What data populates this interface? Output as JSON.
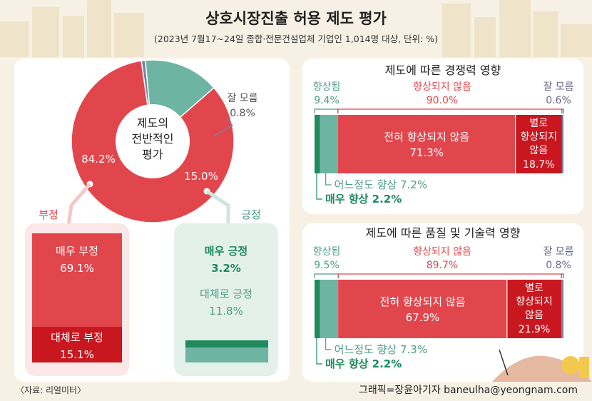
{
  "header": {
    "title": "상호시장진출 허용 제도 평가",
    "subtitle": "(2023년 7월17~24일 종합·전문건설업체 기업인 1,014명 대상, 단위: %)"
  },
  "footer": {
    "source": "〈자료: 리얼미터〉",
    "credit": "그래픽=장윤아기자 baneulha@yeongnam.com"
  },
  "colors": {
    "negative": "#e2464d",
    "negative_dark": "#c8171f",
    "positive": "#6db5a2",
    "positive_dark": "#1e8a5e",
    "unknown": "#7e7fa6",
    "panel_bg": "#ffffff",
    "neg_box_bg": "#fbe7e7",
    "pos_box_bg": "#e4f0ea"
  },
  "chart_data": [
    {
      "type": "pie",
      "title": "제도의 전반적인 평가",
      "slices": [
        {
          "label": "부정",
          "value": 84.2,
          "value_label": "84.2%",
          "color": "#e2464d"
        },
        {
          "label": "긍정",
          "value": 15.0,
          "value_label": "15.0%",
          "color": "#6db5a2"
        },
        {
          "label": "잘 모름",
          "value": 0.8,
          "value_label": "0.8%",
          "color": "#7e7fa6"
        }
      ],
      "breakdown": {
        "negative": {
          "label": "부정",
          "items": [
            {
              "label": "매우 부정",
              "value": 69.1,
              "value_label": "69.1%"
            },
            {
              "label": "대체로 부정",
              "value": 15.1,
              "value_label": "15.1%"
            }
          ]
        },
        "positive": {
          "label": "긍정",
          "items": [
            {
              "label": "매우 긍정",
              "value": 3.2,
              "value_label": "3.2%"
            },
            {
              "label": "대체로 긍정",
              "value": 11.8,
              "value_label": "11.8%"
            }
          ]
        }
      }
    },
    {
      "type": "bar",
      "title": "제도에 따른 경쟁력 영향",
      "groups": [
        {
          "label": "향상됨",
          "value": 9.4,
          "value_label": "9.4%"
        },
        {
          "label": "향상되지 않음",
          "value": 90.0,
          "value_label": "90.0%"
        },
        {
          "label": "잘 모름",
          "value": 0.6,
          "value_label": "0.6%"
        }
      ],
      "segments": [
        {
          "label": "매우 향상",
          "value": 2.2,
          "value_label": "2.2%"
        },
        {
          "label": "어느정도 향상",
          "value": 7.2,
          "value_label": "7.2%"
        },
        {
          "label": "전혀 향상되지 않음",
          "value": 71.3,
          "value_label": "71.3%"
        },
        {
          "label": "별로 향상되지 않음",
          "value": 18.7,
          "value_label": "18.7%"
        },
        {
          "label": "잘 모름",
          "value": 0.6
        }
      ]
    },
    {
      "type": "bar",
      "title": "제도에 따른 품질 및 기술력 영향",
      "groups": [
        {
          "label": "향상됨",
          "value": 9.5,
          "value_label": "9.5%"
        },
        {
          "label": "향상되지 않음",
          "value": 89.7,
          "value_label": "89.7%"
        },
        {
          "label": "잘 모름",
          "value": 0.8,
          "value_label": "0.8%"
        }
      ],
      "segments": [
        {
          "label": "매우 향상",
          "value": 2.2,
          "value_label": "2.2%"
        },
        {
          "label": "어느정도 향상",
          "value": 7.3,
          "value_label": "7.3%"
        },
        {
          "label": "전혀 향상되지 않음",
          "value": 67.9,
          "value_label": "67.9%"
        },
        {
          "label": "별로 향상되지 않음",
          "value": 21.9,
          "value_label": "21.9%"
        },
        {
          "label": "잘 모름",
          "value": 0.8
        }
      ]
    }
  ]
}
